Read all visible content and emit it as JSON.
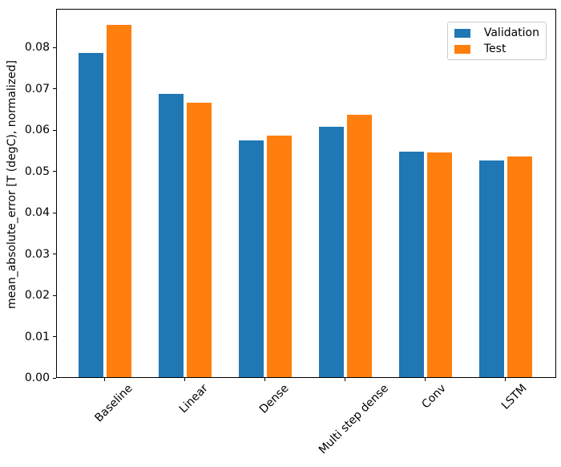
{
  "chart_data": {
    "type": "bar",
    "title": "",
    "xlabel": "",
    "ylabel": "mean_absolute_error [T (degC), normalized]",
    "categories": [
      "Baseline",
      "Linear",
      "Dense",
      "Multi step dense",
      "Conv",
      "LSTM"
    ],
    "series": [
      {
        "name": "Validation",
        "color": "#1f77b4",
        "values": [
          0.0785,
          0.0687,
          0.0574,
          0.0607,
          0.0546,
          0.0525
        ]
      },
      {
        "name": "Test",
        "color": "#ff7f0e",
        "values": [
          0.0853,
          0.0664,
          0.0585,
          0.0635,
          0.0544,
          0.0534
        ]
      }
    ],
    "ylim": [
      0,
      0.0894
    ],
    "yticks": [
      "0.00",
      "0.01",
      "0.02",
      "0.03",
      "0.04",
      "0.05",
      "0.06",
      "0.07",
      "0.08"
    ],
    "grid": false,
    "x_tick_rotation_deg": 45,
    "legend": {
      "position": "upper right",
      "items": [
        "Validation",
        "Test"
      ]
    }
  }
}
